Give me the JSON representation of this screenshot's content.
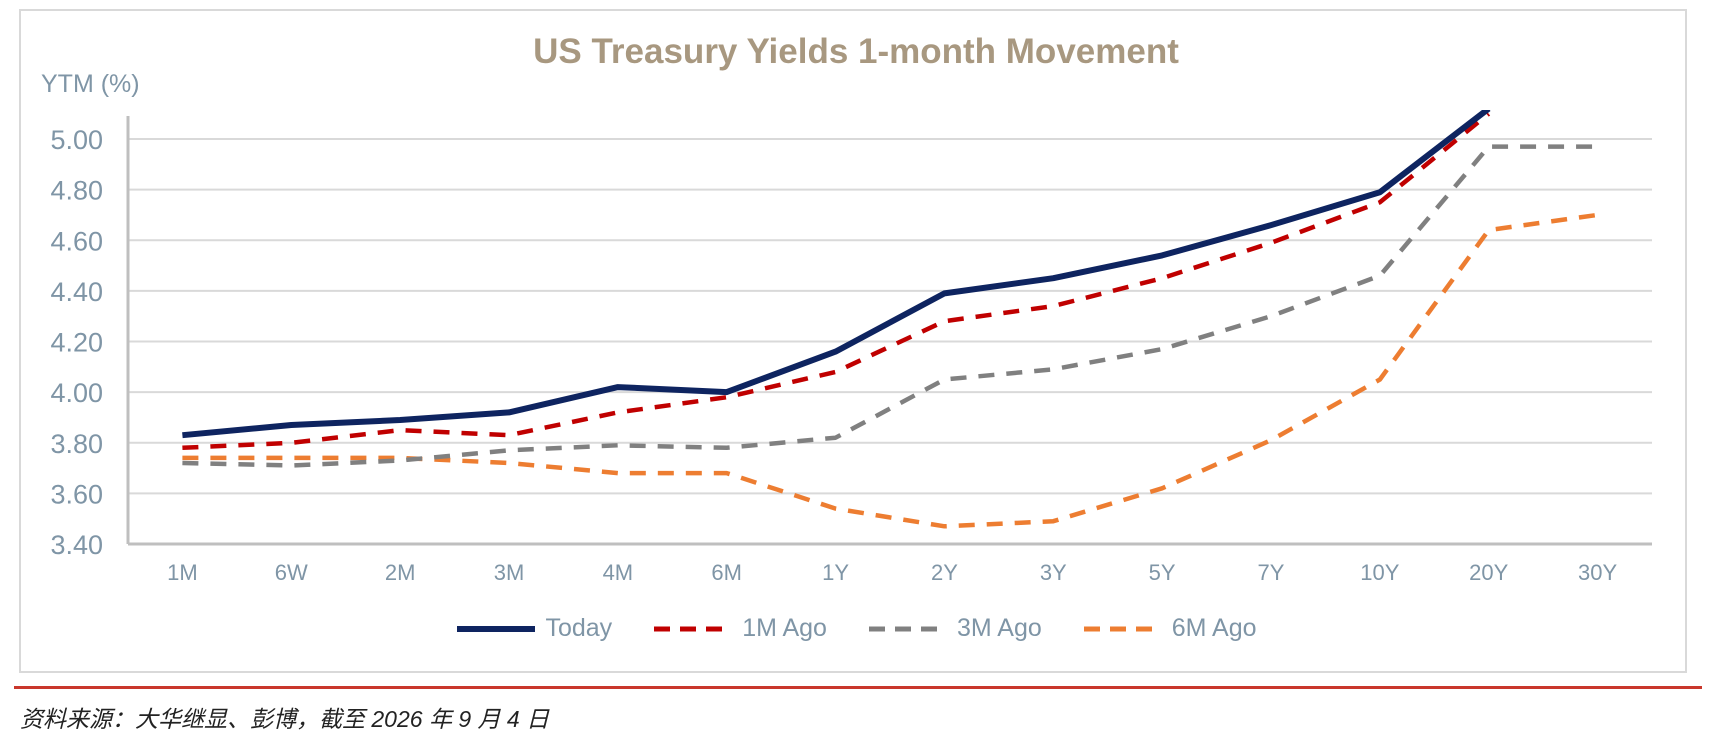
{
  "chart_data": {
    "type": "line",
    "title": "US Treasury Yields 1-month Movement",
    "ylabel": "YTM (%)",
    "xlabel": "",
    "ylim": [
      3.4,
      5.0
    ],
    "yticks": [
      "5.00",
      "4.80",
      "4.60",
      "4.40",
      "4.20",
      "4.00",
      "3.80",
      "3.60",
      "3.40"
    ],
    "categories": [
      "1M",
      "6W",
      "2M",
      "3M",
      "4M",
      "6M",
      "1Y",
      "2Y",
      "3Y",
      "5Y",
      "7Y",
      "10Y",
      "20Y",
      "30Y"
    ],
    "grid": true,
    "legend": "bottom",
    "series": [
      {
        "name": "Today",
        "color": "#0e2460",
        "style": "solid",
        "values": [
          3.83,
          3.87,
          3.89,
          3.92,
          4.02,
          4.0,
          4.16,
          4.39,
          4.45,
          4.54,
          4.66,
          4.79,
          5.12,
          null
        ]
      },
      {
        "name": "1M Ago",
        "color": "#c00000",
        "style": "dashed",
        "values": [
          3.78,
          3.8,
          3.85,
          3.83,
          3.92,
          3.98,
          4.08,
          4.28,
          4.34,
          4.45,
          4.59,
          4.75,
          5.1,
          null
        ]
      },
      {
        "name": "3M Ago",
        "color": "#808080",
        "style": "dashed",
        "values": [
          3.72,
          3.71,
          3.73,
          3.77,
          3.79,
          3.78,
          3.82,
          4.05,
          4.09,
          4.17,
          4.3,
          4.46,
          4.97,
          4.97
        ]
      },
      {
        "name": "6M Ago",
        "color": "#ed7d31",
        "style": "dashed",
        "values": [
          3.74,
          3.74,
          3.74,
          3.72,
          3.68,
          3.68,
          3.54,
          3.47,
          3.49,
          3.62,
          3.81,
          4.05,
          4.64,
          4.7
        ]
      }
    ]
  },
  "source_note": "资料来源：大华继显、彭博，截至 2026 年 9 月 4 日"
}
